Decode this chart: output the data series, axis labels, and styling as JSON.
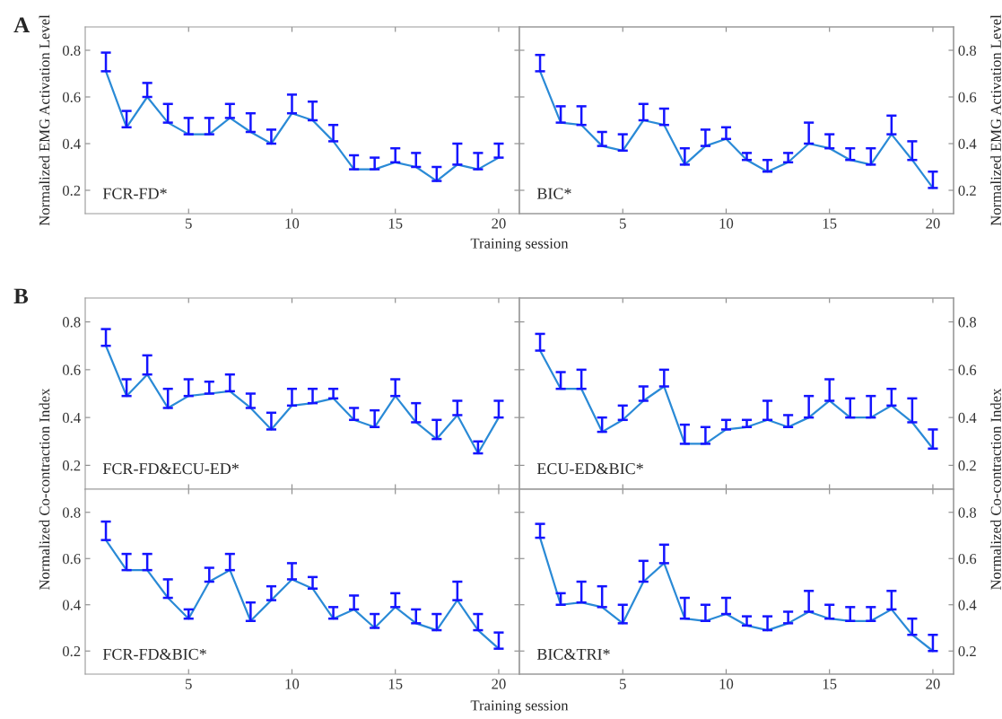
{
  "chart_data": [
    {
      "type": "line",
      "title": "FCR-FD*",
      "xlabel": "Training session",
      "ylabel": "Normalized EMG Activation Level",
      "annotations": [
        "A"
      ],
      "xlim": [
        0,
        21
      ],
      "xticks": [
        5,
        10,
        15,
        20
      ],
      "ylim": [
        0.1,
        0.9
      ],
      "yticks": [
        0.2,
        0.4,
        0.6,
        0.8
      ],
      "x": [
        1,
        2,
        3,
        4,
        5,
        6,
        7,
        8,
        9,
        10,
        11,
        12,
        13,
        14,
        15,
        16,
        17,
        18,
        19,
        20
      ],
      "series": [
        {
          "color": "#2a8ad6",
          "values": [
            0.71,
            0.47,
            0.6,
            0.49,
            0.44,
            0.44,
            0.51,
            0.45,
            0.4,
            0.53,
            0.5,
            0.41,
            0.29,
            0.29,
            0.32,
            0.3,
            0.24,
            0.31,
            0.29,
            0.34
          ],
          "errors": [
            [
              0.71,
              0.79
            ],
            [
              0.47,
              0.54
            ],
            [
              0.6,
              0.66
            ],
            [
              0.49,
              0.57
            ],
            [
              0.44,
              0.51
            ],
            [
              0.44,
              0.51
            ],
            [
              0.51,
              0.57
            ],
            [
              0.45,
              0.53
            ],
            [
              0.4,
              0.46
            ],
            [
              0.53,
              0.61
            ],
            [
              0.5,
              0.58
            ],
            [
              0.41,
              0.48
            ],
            [
              0.29,
              0.35
            ],
            [
              0.29,
              0.34
            ],
            [
              0.32,
              0.38
            ],
            [
              0.3,
              0.36
            ],
            [
              0.24,
              0.3
            ],
            [
              0.31,
              0.4
            ],
            [
              0.29,
              0.36
            ],
            [
              0.34,
              0.4
            ]
          ]
        }
      ]
    },
    {
      "type": "line",
      "title": "BIC*",
      "y2label": "Normalized EMG Activation Level",
      "xlim": [
        0,
        21
      ],
      "xticks": [
        5,
        10,
        15,
        20
      ],
      "y2lim": [
        0.1,
        0.9
      ],
      "y2ticks": [
        0.2,
        0.4,
        0.6,
        0.8
      ],
      "x": [
        1,
        2,
        3,
        4,
        5,
        6,
        7,
        8,
        9,
        10,
        11,
        12,
        13,
        14,
        15,
        16,
        17,
        18,
        19,
        20
      ],
      "series": [
        {
          "color": "#2a8ad6",
          "axis": "y2",
          "values": [
            0.71,
            0.49,
            0.48,
            0.39,
            0.37,
            0.5,
            0.48,
            0.31,
            0.39,
            0.42,
            0.33,
            0.28,
            0.32,
            0.4,
            0.38,
            0.33,
            0.31,
            0.44,
            0.33,
            0.21
          ],
          "errors": [
            [
              0.71,
              0.78
            ],
            [
              0.49,
              0.56
            ],
            [
              0.48,
              0.56
            ],
            [
              0.39,
              0.45
            ],
            [
              0.37,
              0.44
            ],
            [
              0.5,
              0.57
            ],
            [
              0.48,
              0.55
            ],
            [
              0.31,
              0.38
            ],
            [
              0.39,
              0.46
            ],
            [
              0.42,
              0.47
            ],
            [
              0.33,
              0.36
            ],
            [
              0.28,
              0.33
            ],
            [
              0.32,
              0.36
            ],
            [
              0.4,
              0.49
            ],
            [
              0.38,
              0.44
            ],
            [
              0.33,
              0.38
            ],
            [
              0.31,
              0.38
            ],
            [
              0.44,
              0.52
            ],
            [
              0.33,
              0.41
            ],
            [
              0.21,
              0.28
            ]
          ]
        }
      ]
    },
    {
      "type": "line",
      "title": "FCR-FD&ECU-ED*",
      "ylabel": "Normalized Co-contraction Index",
      "annotations": [
        "B"
      ],
      "tick_labels": "y",
      "xlim": [
        0,
        21
      ],
      "xticks": [
        5,
        10,
        15,
        20
      ],
      "ylim": [
        0.1,
        0.9
      ],
      "yticks": [
        0.2,
        0.4,
        0.6,
        0.8
      ],
      "x": [
        1,
        2,
        3,
        4,
        5,
        6,
        7,
        8,
        9,
        10,
        11,
        12,
        13,
        14,
        15,
        16,
        17,
        18,
        19,
        20
      ],
      "series": [
        {
          "color": "#2a8ad6",
          "values": [
            0.7,
            0.49,
            0.58,
            0.44,
            0.49,
            0.5,
            0.51,
            0.44,
            0.35,
            0.45,
            0.46,
            0.48,
            0.39,
            0.36,
            0.49,
            0.38,
            0.31,
            0.41,
            0.25,
            0.4
          ],
          "errors": [
            [
              0.7,
              0.77
            ],
            [
              0.49,
              0.56
            ],
            [
              0.58,
              0.66
            ],
            [
              0.44,
              0.52
            ],
            [
              0.49,
              0.56
            ],
            [
              0.5,
              0.55
            ],
            [
              0.51,
              0.58
            ],
            [
              0.44,
              0.5
            ],
            [
              0.35,
              0.42
            ],
            [
              0.45,
              0.52
            ],
            [
              0.46,
              0.52
            ],
            [
              0.48,
              0.52
            ],
            [
              0.39,
              0.44
            ],
            [
              0.36,
              0.43
            ],
            [
              0.49,
              0.56
            ],
            [
              0.38,
              0.46
            ],
            [
              0.31,
              0.39
            ],
            [
              0.41,
              0.47
            ],
            [
              0.25,
              0.3
            ],
            [
              0.4,
              0.47
            ]
          ]
        }
      ]
    },
    {
      "type": "line",
      "title": "ECU-ED&BIC*",
      "tick_labels": "y",
      "xlim": [
        0,
        21
      ],
      "xticks": [
        5,
        10,
        15,
        20
      ],
      "y2lim": [
        0.1,
        0.9
      ],
      "y2ticks": [
        0.2,
        0.4,
        0.6,
        0.8
      ],
      "x": [
        1,
        2,
        3,
        4,
        5,
        6,
        7,
        8,
        9,
        10,
        11,
        12,
        13,
        14,
        15,
        16,
        17,
        18,
        19,
        20
      ],
      "series": [
        {
          "color": "#2a8ad6",
          "axis": "y2",
          "values": [
            0.68,
            0.52,
            0.52,
            0.34,
            0.39,
            0.47,
            0.53,
            0.29,
            0.29,
            0.35,
            0.36,
            0.39,
            0.36,
            0.4,
            0.47,
            0.4,
            0.4,
            0.45,
            0.38,
            0.27
          ],
          "errors": [
            [
              0.68,
              0.75
            ],
            [
              0.52,
              0.59
            ],
            [
              0.52,
              0.6
            ],
            [
              0.34,
              0.4
            ],
            [
              0.39,
              0.45
            ],
            [
              0.47,
              0.53
            ],
            [
              0.53,
              0.6
            ],
            [
              0.29,
              0.37
            ],
            [
              0.29,
              0.36
            ],
            [
              0.35,
              0.39
            ],
            [
              0.36,
              0.39
            ],
            [
              0.39,
              0.47
            ],
            [
              0.36,
              0.41
            ],
            [
              0.4,
              0.49
            ],
            [
              0.47,
              0.56
            ],
            [
              0.4,
              0.48
            ],
            [
              0.4,
              0.49
            ],
            [
              0.45,
              0.52
            ],
            [
              0.38,
              0.48
            ],
            [
              0.27,
              0.35
            ]
          ]
        }
      ]
    },
    {
      "type": "line",
      "title": "FCR-FD&BIC*",
      "xlabel": "Training session",
      "xlim": [
        0,
        21
      ],
      "xticks": [
        5,
        10,
        15,
        20
      ],
      "ylim": [
        0.1,
        0.9
      ],
      "yticks": [
        0.2,
        0.4,
        0.6,
        0.8
      ],
      "x": [
        1,
        2,
        3,
        4,
        5,
        6,
        7,
        8,
        9,
        10,
        11,
        12,
        13,
        14,
        15,
        16,
        17,
        18,
        19,
        20
      ],
      "series": [
        {
          "color": "#2a8ad6",
          "values": [
            0.68,
            0.55,
            0.55,
            0.43,
            0.34,
            0.5,
            0.55,
            0.33,
            0.42,
            0.51,
            0.47,
            0.34,
            0.38,
            0.3,
            0.39,
            0.32,
            0.29,
            0.42,
            0.29,
            0.21
          ],
          "errors": [
            [
              0.68,
              0.76
            ],
            [
              0.55,
              0.62
            ],
            [
              0.55,
              0.62
            ],
            [
              0.43,
              0.51
            ],
            [
              0.34,
              0.38
            ],
            [
              0.5,
              0.56
            ],
            [
              0.55,
              0.62
            ],
            [
              0.33,
              0.41
            ],
            [
              0.42,
              0.48
            ],
            [
              0.51,
              0.58
            ],
            [
              0.47,
              0.52
            ],
            [
              0.34,
              0.39
            ],
            [
              0.38,
              0.44
            ],
            [
              0.3,
              0.36
            ],
            [
              0.39,
              0.45
            ],
            [
              0.32,
              0.38
            ],
            [
              0.29,
              0.36
            ],
            [
              0.42,
              0.5
            ],
            [
              0.29,
              0.36
            ],
            [
              0.21,
              0.28
            ]
          ]
        }
      ]
    },
    {
      "type": "line",
      "title": "BIC&TRI*",
      "y2label": "Normalized Co-contraction Index",
      "xlim": [
        0,
        21
      ],
      "xticks": [
        5,
        10,
        15,
        20
      ],
      "y2lim": [
        0.1,
        0.9
      ],
      "y2ticks": [
        0.2,
        0.4,
        0.6,
        0.8
      ],
      "x": [
        1,
        2,
        3,
        4,
        5,
        6,
        7,
        8,
        9,
        10,
        11,
        12,
        13,
        14,
        15,
        16,
        17,
        18,
        19,
        20
      ],
      "series": [
        {
          "color": "#2a8ad6",
          "axis": "y2",
          "values": [
            0.69,
            0.4,
            0.41,
            0.39,
            0.32,
            0.5,
            0.58,
            0.34,
            0.33,
            0.36,
            0.31,
            0.29,
            0.32,
            0.37,
            0.34,
            0.33,
            0.33,
            0.38,
            0.27,
            0.2
          ],
          "errors": [
            [
              0.69,
              0.75
            ],
            [
              0.4,
              0.45
            ],
            [
              0.41,
              0.5
            ],
            [
              0.39,
              0.48
            ],
            [
              0.32,
              0.4
            ],
            [
              0.5,
              0.59
            ],
            [
              0.58,
              0.66
            ],
            [
              0.34,
              0.43
            ],
            [
              0.33,
              0.4
            ],
            [
              0.36,
              0.43
            ],
            [
              0.31,
              0.35
            ],
            [
              0.29,
              0.35
            ],
            [
              0.32,
              0.37
            ],
            [
              0.37,
              0.46
            ],
            [
              0.34,
              0.4
            ],
            [
              0.33,
              0.39
            ],
            [
              0.33,
              0.39
            ],
            [
              0.38,
              0.46
            ],
            [
              0.27,
              0.34
            ],
            [
              0.2,
              0.27
            ]
          ]
        }
      ]
    }
  ]
}
